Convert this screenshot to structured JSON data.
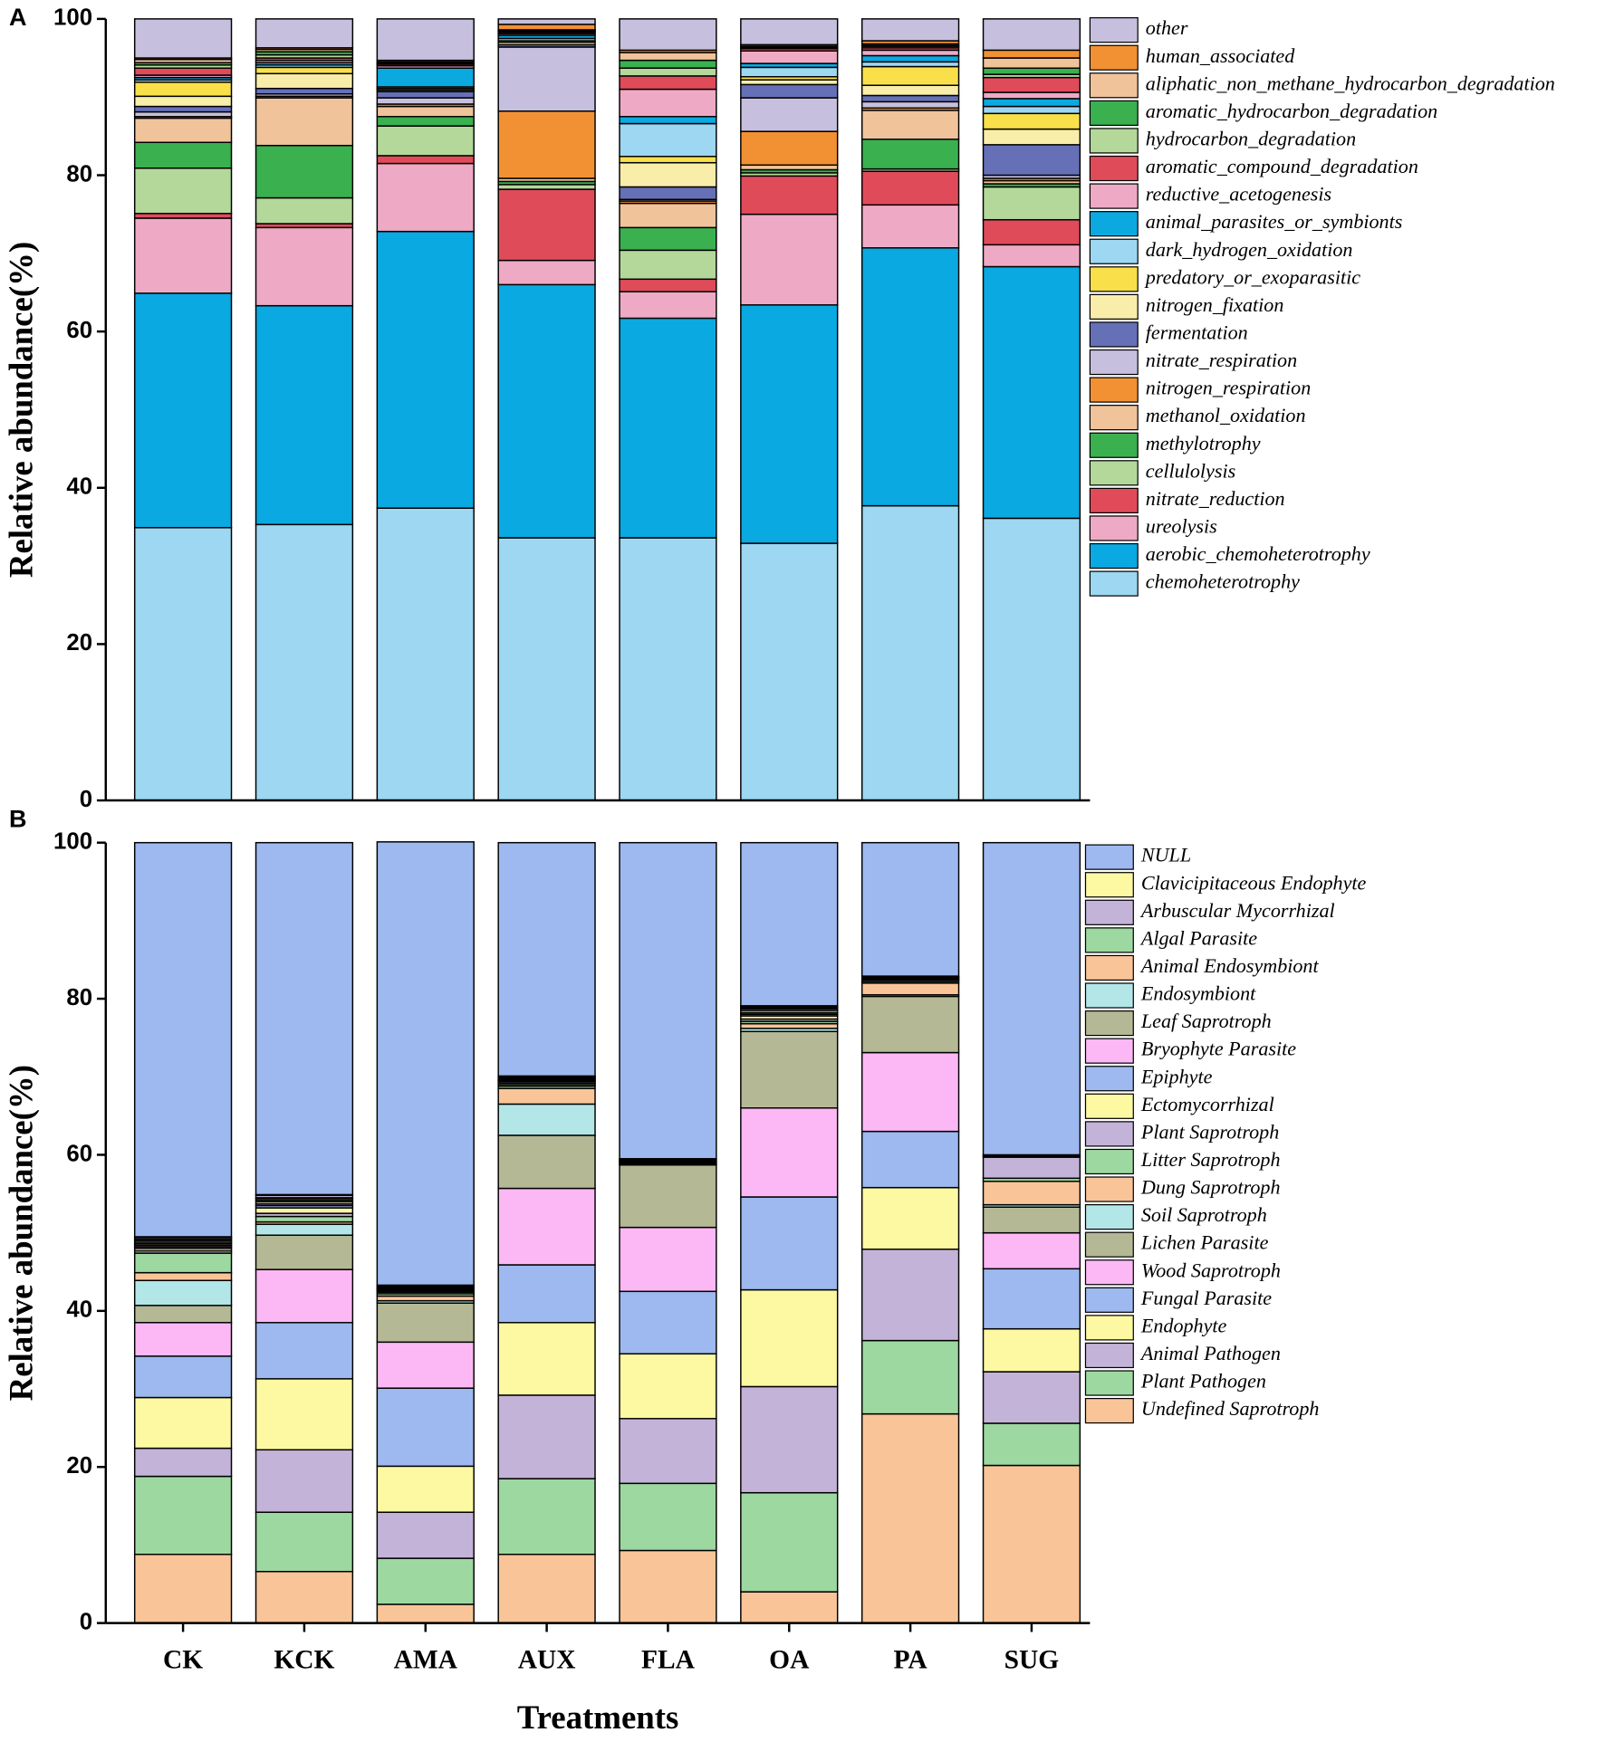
{
  "chart_data": [
    {
      "type": "stacked_bar",
      "panel_label": "A",
      "y_label": "Relative abundance(%)",
      "ylim": [
        0,
        100
      ],
      "yticks": [
        0,
        20,
        40,
        60,
        80,
        100
      ],
      "series": [
        {
          "name": "chemoheterotrophy",
          "color": "#9dd7f1",
          "values": [
            34.9,
            35.3,
            37.4,
            33.6,
            33.6,
            32.9,
            37.7,
            36.1
          ]
        },
        {
          "name": "aerobic_chemoheterotrophy",
          "color": "#0aa9e1",
          "values": [
            30.0,
            28.0,
            35.4,
            32.4,
            28.1,
            30.5,
            33.0,
            32.2
          ]
        },
        {
          "name": "ureolysis",
          "color": "#eeaac5",
          "values": [
            9.6,
            10.0,
            8.7,
            3.1,
            3.4,
            11.6,
            5.5,
            2.8
          ]
        },
        {
          "name": "nitrate_reduction",
          "color": "#e04b5a",
          "values": [
            0.6,
            0.5,
            1.0,
            9.1,
            1.6,
            4.9,
            4.3,
            3.2
          ]
        },
        {
          "name": "cellulolysis",
          "color": "#b4d89a",
          "values": [
            5.8,
            3.3,
            3.8,
            0.6,
            3.7,
            0.4,
            0.3,
            4.2
          ]
        },
        {
          "name": "methylotrophy",
          "color": "#3ab04f",
          "values": [
            3.3,
            6.7,
            1.2,
            0.4,
            2.9,
            0.4,
            3.8,
            0.4
          ]
        },
        {
          "name": "methanol_oxidation",
          "color": "#f0c39b",
          "values": [
            3.1,
            6.1,
            1.3,
            0.4,
            3.1,
            0.6,
            3.7,
            0.4
          ]
        },
        {
          "name": "nitrogen_respiration",
          "color": "#f29133",
          "values": [
            0.2,
            0.2,
            0.3,
            8.6,
            0.3,
            4.3,
            0.3,
            0.3
          ]
        },
        {
          "name": "nitrate_respiration",
          "color": "#c6c0de",
          "values": [
            0.6,
            0.3,
            0.8,
            8.2,
            0.2,
            4.3,
            0.8,
            0.4
          ]
        },
        {
          "name": "fermentation",
          "color": "#6670b7",
          "values": [
            0.7,
            0.7,
            0.8,
            0.3,
            1.6,
            1.7,
            0.8,
            3.9
          ]
        },
        {
          "name": "nitrogen_fixation",
          "color": "#f8eeaa",
          "values": [
            1.3,
            1.9,
            0.2,
            0.3,
            3.1,
            0.6,
            1.3,
            2.0
          ]
        },
        {
          "name": "predatory_or_exoparasitic",
          "color": "#f9e04a",
          "values": [
            1.8,
            0.8,
            0.2,
            0.2,
            0.8,
            0.4,
            2.4,
            2.0
          ]
        },
        {
          "name": "dark_hydrogen_oxidation",
          "color": "#9ed7f2",
          "values": [
            0.3,
            0.3,
            0.2,
            0.3,
            4.2,
            1.2,
            0.6,
            0.9
          ]
        },
        {
          "name": "animal_parasites_or_symbionts",
          "color": "#0ba9e0",
          "values": [
            0.3,
            0.3,
            2.4,
            0.4,
            0.9,
            0.5,
            0.8,
            1.0
          ]
        },
        {
          "name": "reductive_acetogenesis",
          "color": "#eeaac5",
          "values": [
            0.3,
            0.3,
            0.3,
            0.2,
            3.5,
            1.6,
            0.7,
            0.8
          ]
        },
        {
          "name": "aromatic_compound_degradation",
          "color": "#e04b5a",
          "values": [
            0.9,
            0.3,
            0.2,
            0.2,
            1.7,
            0.3,
            0.3,
            1.9
          ]
        },
        {
          "name": "hydrocarbon_degradation",
          "color": "#b4d89a",
          "values": [
            0.4,
            0.4,
            0.1,
            0.1,
            1.0,
            0.1,
            0.2,
            0.4
          ]
        },
        {
          "name": "aromatic_hydrocarbon_degradation",
          "color": "#3ab04f",
          "values": [
            0.3,
            0.4,
            0.1,
            0.1,
            1.0,
            0.1,
            0.1,
            0.8
          ]
        },
        {
          "name": "aliphatic_non_methane_hydrocarbon_degradation",
          "color": "#f0c39b",
          "values": [
            0.4,
            0.3,
            0.1,
            0.1,
            1.0,
            0.1,
            0.2,
            1.3
          ]
        },
        {
          "name": "human_associated",
          "color": "#f29133",
          "values": [
            0.2,
            0.2,
            0.2,
            0.7,
            0.3,
            0.2,
            0.4,
            1.0
          ]
        },
        {
          "name": "other",
          "color": "#c6c0de",
          "values": [
            5.0,
            3.7,
            5.3,
            0.7,
            4.0,
            3.3,
            2.8,
            4.0
          ]
        }
      ]
    },
    {
      "type": "stacked_bar",
      "panel_label": "B",
      "y_label": "Relative abundance(%)",
      "x_label": "Treatments",
      "categories": [
        "CK",
        "KCK",
        "AMA",
        "AUX",
        "FLA",
        "OA",
        "PA",
        "SUG"
      ],
      "ylim": [
        0,
        100
      ],
      "yticks": [
        0,
        20,
        40,
        60,
        80,
        100
      ],
      "series": [
        {
          "name": "Undefined Saprotroph",
          "color": "#f9c598",
          "values": [
            8.8,
            6.6,
            2.4,
            8.8,
            9.3,
            4.0,
            26.8,
            20.2
          ]
        },
        {
          "name": "Plant Pathogen",
          "color": "#9dd8a0",
          "values": [
            10.0,
            7.6,
            5.9,
            9.7,
            8.6,
            12.7,
            9.4,
            5.4
          ]
        },
        {
          "name": "Animal Pathogen",
          "color": "#c3b3d8",
          "values": [
            3.6,
            8.0,
            5.9,
            10.7,
            8.3,
            13.6,
            11.7,
            6.6
          ]
        },
        {
          "name": "Endophyte",
          "color": "#fdf8a2",
          "values": [
            6.5,
            9.1,
            5.9,
            9.3,
            8.3,
            12.4,
            7.9,
            5.5
          ]
        },
        {
          "name": "Fungal Parasite",
          "color": "#9db9ef",
          "values": [
            5.3,
            7.2,
            10.0,
            7.4,
            8.0,
            11.9,
            7.2,
            7.7
          ]
        },
        {
          "name": "Wood Saprotroph",
          "color": "#fcb8f5",
          "values": [
            4.3,
            6.8,
            5.9,
            9.8,
            8.2,
            11.4,
            10.1,
            4.6
          ]
        },
        {
          "name": "Lichen Parasite",
          "color": "#b4b894",
          "values": [
            2.2,
            4.4,
            5.0,
            6.8,
            8.0,
            9.8,
            7.2,
            3.3
          ]
        },
        {
          "name": "Soil Saprotroph",
          "color": "#b2e6e7",
          "values": [
            3.2,
            1.4,
            0.3,
            4.0,
            0.1,
            0.4,
            0.2,
            0.3
          ]
        },
        {
          "name": "Dung Saprotroph",
          "color": "#f9c598",
          "values": [
            1.0,
            0.3,
            0.6,
            2.0,
            0.1,
            0.6,
            1.5,
            3.0
          ]
        },
        {
          "name": "Litter Saprotroph",
          "color": "#9dd8a0",
          "values": [
            2.5,
            0.7,
            0.3,
            0.3,
            0.1,
            0.3,
            0.2,
            0.4
          ]
        },
        {
          "name": "Plant Saprotroph",
          "color": "#c3b3d8",
          "values": [
            0.3,
            0.4,
            0.2,
            0.2,
            0.1,
            0.3,
            0.2,
            2.7
          ]
        },
        {
          "name": "Ectomycorrhizal",
          "color": "#fdf8a2",
          "values": [
            0.3,
            0.7,
            0.1,
            0.2,
            0.1,
            0.4,
            0.1,
            0.1
          ]
        },
        {
          "name": "Epiphyte",
          "color": "#9db9ef",
          "values": [
            0.2,
            0.3,
            0.1,
            0.2,
            0.1,
            0.2,
            0.1,
            0.1
          ]
        },
        {
          "name": "Bryophyte Parasite",
          "color": "#fcb8f5",
          "values": [
            0.2,
            0.2,
            0.1,
            0.1,
            0.1,
            0.2,
            0.1,
            0.1
          ]
        },
        {
          "name": "Leaf Saprotroph",
          "color": "#b4b894",
          "values": [
            0.2,
            0.3,
            0.1,
            0.1,
            0.1,
            0.3,
            0.1,
            0
          ]
        },
        {
          "name": "Endosymbiont",
          "color": "#b2e6e7",
          "values": [
            0.2,
            0.2,
            0.1,
            0.1,
            0,
            0.2,
            0,
            0
          ]
        },
        {
          "name": "Animal Endosymbiont",
          "color": "#f9c598",
          "values": [
            0.2,
            0.2,
            0.1,
            0.1,
            0,
            0.1,
            0,
            0
          ]
        },
        {
          "name": "Algal Parasite",
          "color": "#9dd8a0",
          "values": [
            0.2,
            0.1,
            0.1,
            0.1,
            0,
            0.1,
            0,
            0
          ]
        },
        {
          "name": "Arbuscular Mycorrhizal",
          "color": "#c3b3d8",
          "values": [
            0.2,
            0.3,
            0.1,
            0.1,
            0,
            0.1,
            0,
            0
          ]
        },
        {
          "name": "Clavicipitaceous Endophyte",
          "color": "#fdf8a2",
          "values": [
            0.1,
            0.1,
            0.1,
            0.1,
            0,
            0.1,
            0.1,
            0
          ]
        },
        {
          "name": "NULL",
          "color": "#9db9ef",
          "values": [
            50.5,
            45.1,
            56.8,
            29.9,
            40.5,
            20.9,
            17.1,
            40.0
          ]
        }
      ]
    }
  ]
}
